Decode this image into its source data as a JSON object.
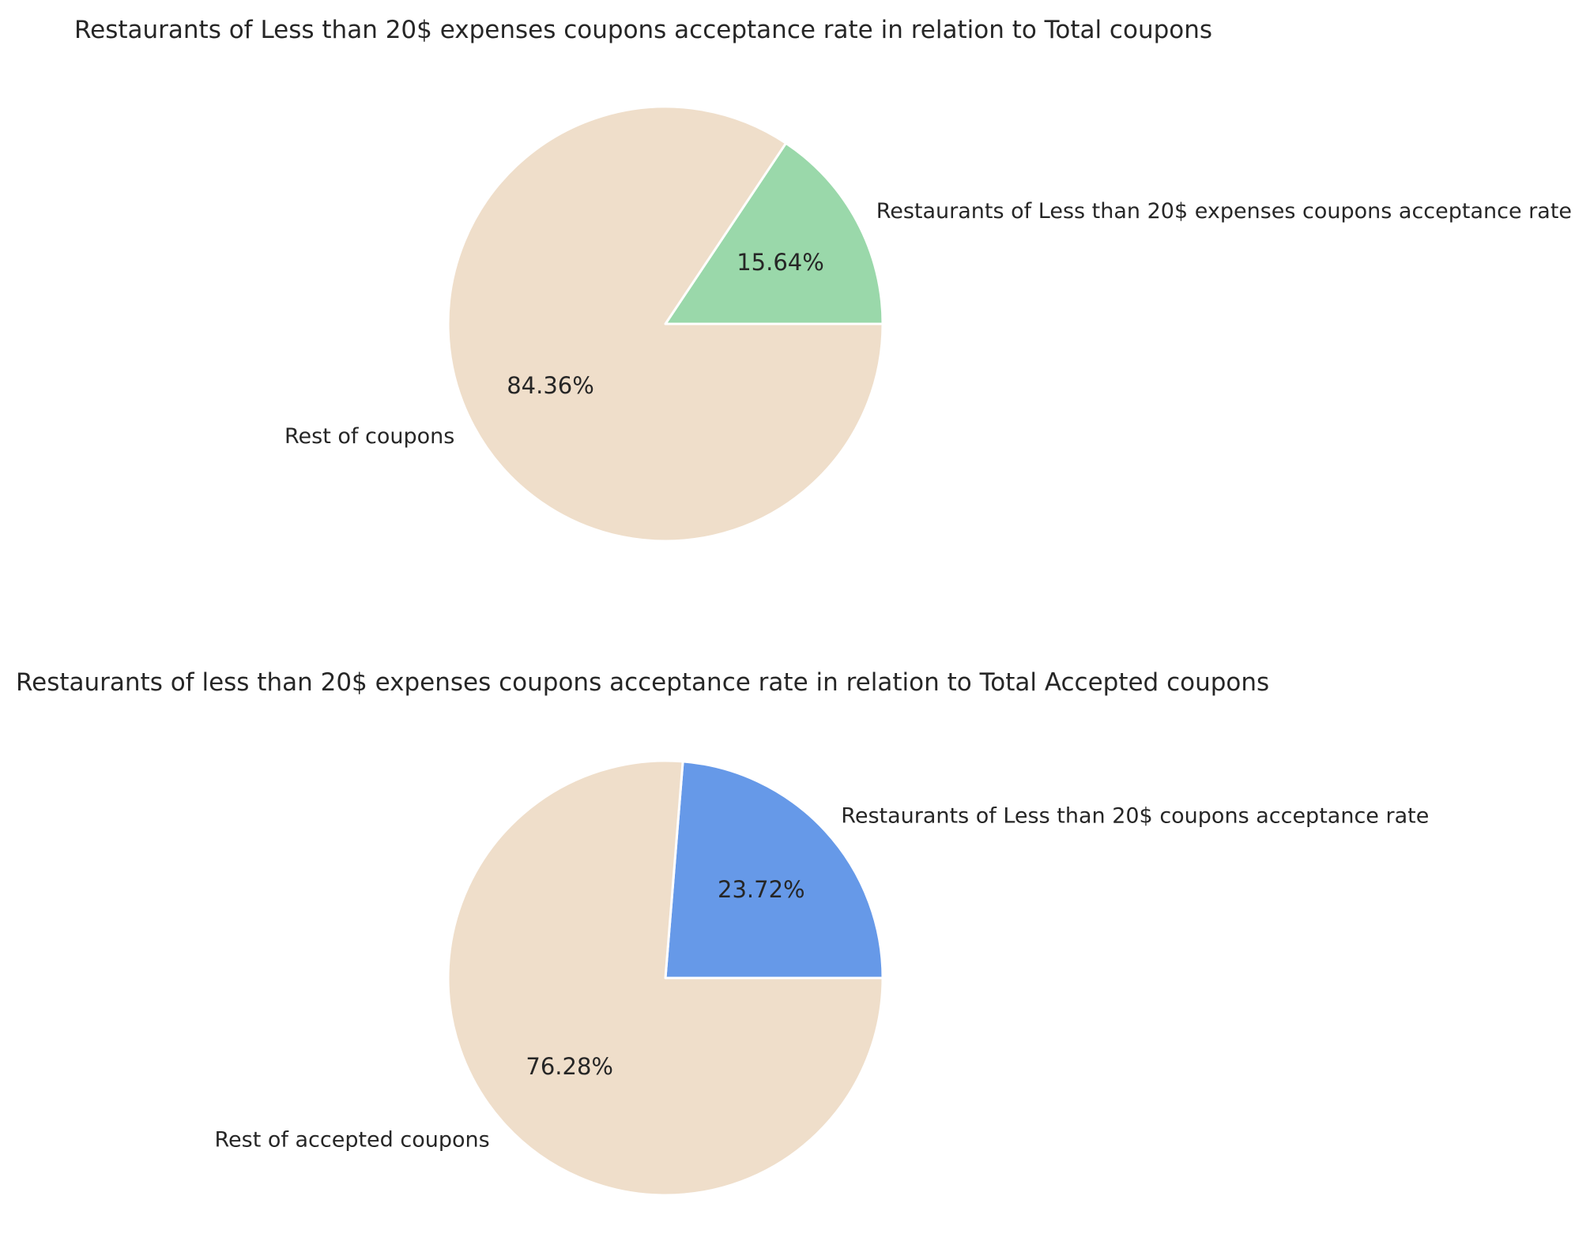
{
  "chart_data": [
    {
      "type": "pie",
      "title": "Restaurants of Less than 20$ expenses coupons acceptance rate in relation to Total coupons",
      "start_angle": 0,
      "direction": "counterclockwise",
      "slices": [
        {
          "label": "Restaurants of Less than 20$ expenses coupons acceptance rate",
          "value": 15.64,
          "value_label": "15.64%",
          "color": "#9ad8aa"
        },
        {
          "label": "Rest of coupons",
          "value": 84.36,
          "value_label": "84.36%",
          "color": "#efdeca"
        }
      ]
    },
    {
      "type": "pie",
      "title": "Restaurants of less than 20$ expenses coupons acceptance rate in relation to Total Accepted coupons",
      "start_angle": 0,
      "direction": "counterclockwise",
      "slices": [
        {
          "label": "Restaurants of Less than 20$ coupons acceptance rate",
          "value": 23.72,
          "value_label": "23.72%",
          "color": "#6699e8"
        },
        {
          "label": "Rest of accepted coupons",
          "value": 76.28,
          "value_label": "76.28%",
          "color": "#efdeca"
        }
      ]
    }
  ]
}
